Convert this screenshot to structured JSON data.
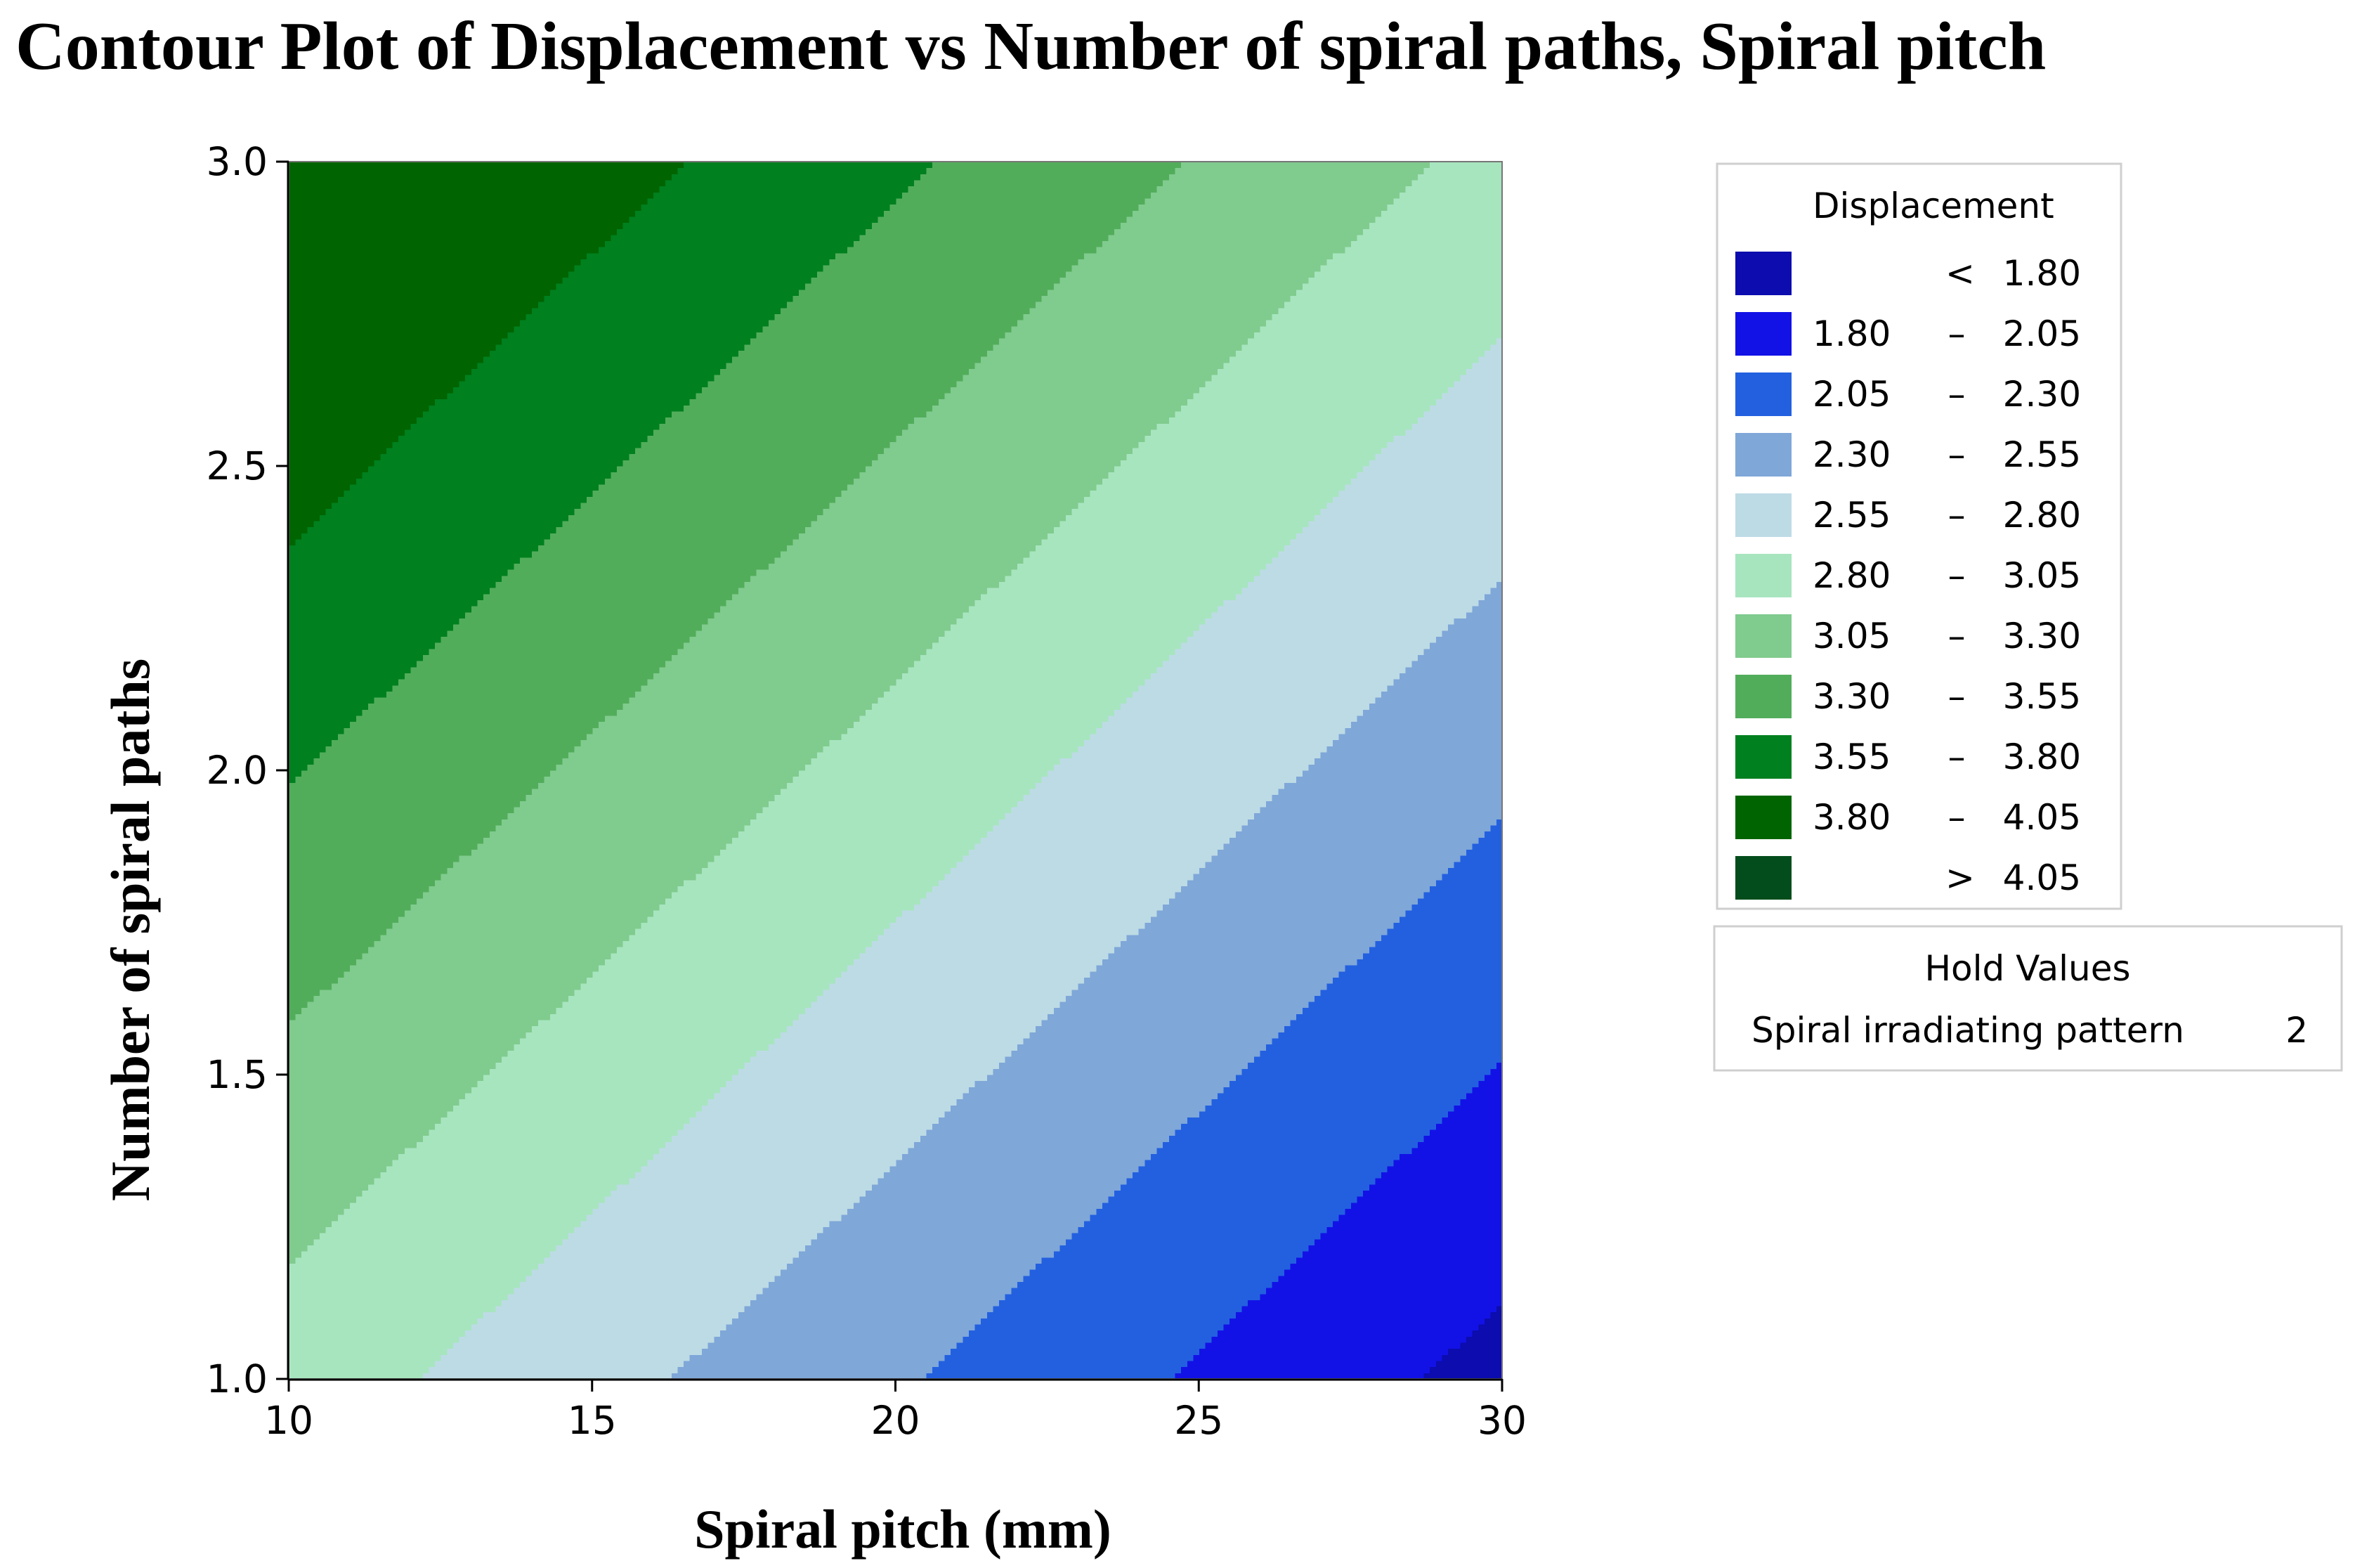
{
  "chart_data": {
    "type": "contour",
    "title": "Contour Plot of Displacement vs Number of spiral paths, Spiral pitch",
    "xlabel": "Spiral pitch (mm)",
    "ylabel": "Number of spiral paths",
    "xlim": [
      10,
      30
    ],
    "ylim": [
      1.0,
      3.0
    ],
    "x_ticks": [
      "10",
      "15",
      "20",
      "25",
      "30"
    ],
    "y_ticks": [
      "1.0",
      "1.5",
      "2.0",
      "2.5",
      "3.0"
    ],
    "z_corners": {
      "x10_y1": 2.93,
      "x30_y1": 1.72,
      "x10_y3": 4.2,
      "x30_y3": 2.98
    },
    "legend": {
      "title": "Displacement",
      "position": "right",
      "bands": [
        {
          "low": "<",
          "sep": "",
          "high": "1.80",
          "color": "#0c0caf"
        },
        {
          "low": "1.80",
          "sep": "–",
          "high": "2.05",
          "color": "#1212e6"
        },
        {
          "low": "2.05",
          "sep": "–",
          "high": "2.30",
          "color": "#2360e0"
        },
        {
          "low": "2.30",
          "sep": "–",
          "high": "2.55",
          "color": "#7fa7d8"
        },
        {
          "low": "2.55",
          "sep": "–",
          "high": "2.80",
          "color": "#bddbe5"
        },
        {
          "low": "2.80",
          "sep": "–",
          "high": "3.05",
          "color": "#a7e5bf"
        },
        {
          "low": "3.05",
          "sep": "–",
          "high": "3.30",
          "color": "#80cb8e"
        },
        {
          "low": "3.30",
          "sep": "–",
          "high": "3.55",
          "color": "#52ad5b"
        },
        {
          "low": "3.55",
          "sep": "–",
          "high": "3.80",
          "color": "#00801f"
        },
        {
          "low": "3.80",
          "sep": "–",
          "high": "4.05",
          "color": "#006400"
        },
        {
          "low": ">",
          "sep": "",
          "high": "4.05",
          "color": "#024d1b"
        }
      ]
    },
    "hold_values": {
      "title": "Hold Values",
      "label": "Spiral irradiating pattern",
      "value": "2"
    }
  }
}
